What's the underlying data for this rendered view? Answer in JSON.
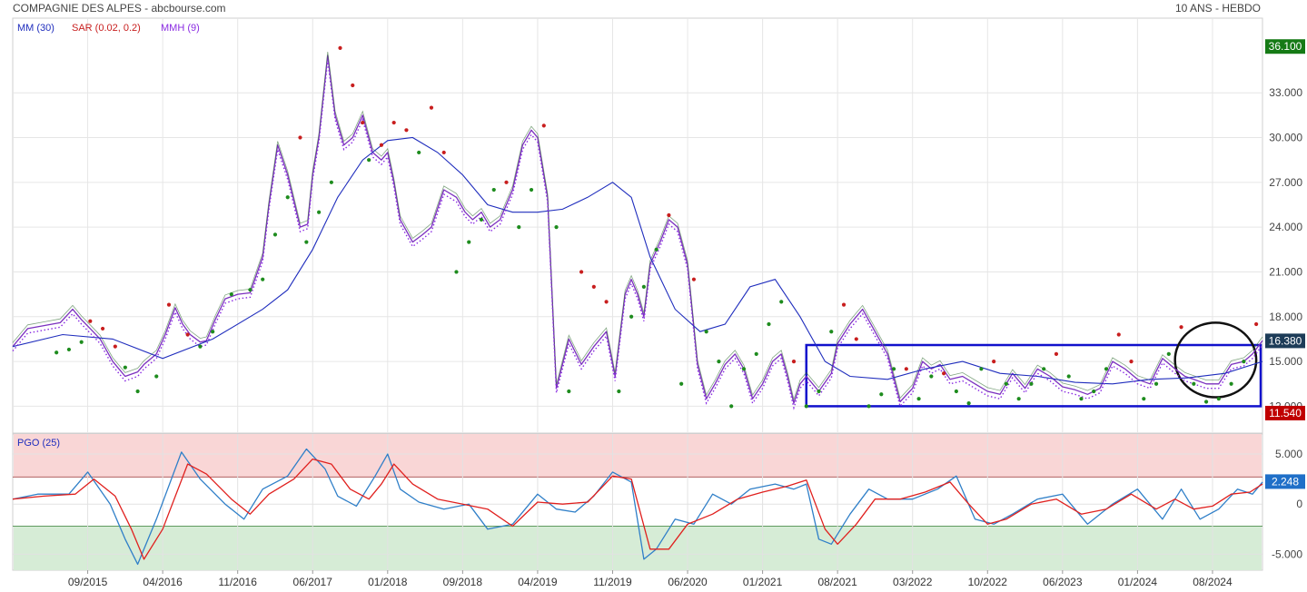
{
  "header": {
    "title": "COMPAGNIE DES ALPES - abcbourse.com",
    "period": "10 ANS - HEBDO"
  },
  "colors": {
    "price": "#7b2fbf",
    "ma": "#1f2dbd",
    "sar_down": "#c81e1e",
    "sar_up": "#1e8c1e",
    "mmh": "#8a2be2",
    "pgo": "#2f7fc8",
    "pgo_signal": "#e0201e",
    "upper_zone": "#f9d6d6",
    "lower_zone": "#d6ecd6",
    "annotation": "#1010cc",
    "circle": "#111111",
    "label_green": "#157a15",
    "label_dark": "#1d3c58",
    "label_red": "#c00000"
  },
  "chart_data": [
    {
      "type": "line",
      "legend": [
        {
          "label": "MM (30)",
          "color": "#1f2dbd"
        },
        {
          "label": "SAR (0.02, 0.2)",
          "color": "#c81e1e"
        },
        {
          "label": "MMH (9)",
          "color": "#8a2be2"
        }
      ],
      "legend_position": "top-left",
      "y_ticks": [
        "36.100",
        "33.000",
        "30.000",
        "27.000",
        "24.000",
        "21.000",
        "18.000",
        "15.000",
        "12.000",
        "11.540"
      ],
      "y_tick_values": [
        36.1,
        33,
        30,
        27,
        24,
        21,
        18,
        15,
        12,
        11.54
      ],
      "ylim": [
        10.2,
        38.0
      ],
      "xlim": [
        0,
        10.0
      ],
      "x_ticks": [
        "09/2015",
        "04/2016",
        "11/2016",
        "06/2017",
        "01/2018",
        "09/2018",
        "04/2019",
        "11/2019",
        "06/2020",
        "01/2021",
        "08/2021",
        "03/2022",
        "10/2022",
        "06/2023",
        "01/2024",
        "08/2024"
      ],
      "x_tick_positions": [
        0.6,
        1.2,
        1.8,
        2.4,
        3.0,
        3.6,
        4.2,
        4.8,
        5.4,
        6.0,
        6.6,
        7.2,
        7.8,
        8.4,
        9.0,
        9.6
      ],
      "grid": true,
      "value_labels": [
        {
          "text": "36.100",
          "value": 36.1,
          "color": "#157a15"
        },
        {
          "text": "16.380",
          "value": 16.38,
          "color": "#1d3c58"
        },
        {
          "text": "11.540",
          "value": 11.54,
          "color": "#c00000"
        }
      ],
      "price": {
        "x": [
          0,
          0.12,
          0.25,
          0.38,
          0.48,
          0.55,
          0.62,
          0.7,
          0.8,
          0.9,
          1.0,
          1.05,
          1.15,
          1.22,
          1.3,
          1.36,
          1.42,
          1.5,
          1.55,
          1.62,
          1.7,
          1.8,
          1.9,
          2.0,
          2.05,
          2.12,
          2.2,
          2.3,
          2.36,
          2.4,
          2.45,
          2.52,
          2.58,
          2.65,
          2.72,
          2.8,
          2.88,
          2.95,
          3.0,
          3.05,
          3.1,
          3.2,
          3.28,
          3.35,
          3.45,
          3.55,
          3.62,
          3.68,
          3.75,
          3.82,
          3.9,
          4.0,
          4.08,
          4.15,
          4.2,
          4.28,
          4.35,
          4.45,
          4.55,
          4.65,
          4.75,
          4.82,
          4.9,
          4.95,
          5.0,
          5.05,
          5.1,
          5.18,
          5.25,
          5.32,
          5.4,
          5.48,
          5.55,
          5.62,
          5.7,
          5.78,
          5.85,
          5.92,
          6.0,
          6.08,
          6.15,
          6.2,
          6.25,
          6.3,
          6.35,
          6.45,
          6.55,
          6.6,
          6.7,
          6.8,
          6.9,
          7.0,
          7.1,
          7.2,
          7.28,
          7.35,
          7.42,
          7.5,
          7.6,
          7.7,
          7.8,
          7.9,
          8.0,
          8.1,
          8.2,
          8.3,
          8.4,
          8.5,
          8.6,
          8.7,
          8.8,
          8.9,
          9.0,
          9.1,
          9.2,
          9.3,
          9.38,
          9.45,
          9.55,
          9.65,
          9.75,
          9.85,
          9.92,
          10.0
        ],
        "y": [
          16.0,
          17.2,
          17.4,
          17.6,
          18.5,
          17.8,
          17.2,
          16.5,
          15.0,
          14.0,
          14.3,
          14.8,
          15.5,
          16.8,
          18.6,
          17.5,
          16.8,
          16.3,
          16.4,
          17.8,
          19.2,
          19.5,
          19.6,
          22.0,
          25.5,
          29.5,
          27.5,
          24.0,
          24.2,
          27.5,
          30.0,
          35.5,
          31.5,
          29.5,
          30.0,
          31.5,
          29.0,
          28.5,
          29.0,
          27.0,
          24.5,
          23.0,
          23.5,
          24.0,
          26.5,
          26.0,
          25.0,
          24.5,
          25.0,
          24.0,
          24.5,
          26.5,
          29.5,
          30.5,
          30.0,
          26.0,
          13.2,
          16.5,
          14.8,
          16.0,
          17.0,
          14.0,
          19.5,
          20.5,
          19.5,
          18.0,
          21.5,
          23.0,
          24.5,
          24.0,
          21.5,
          14.8,
          12.5,
          13.5,
          14.8,
          15.5,
          14.5,
          12.5,
          13.5,
          15.0,
          15.5,
          14.0,
          12.2,
          13.5,
          14.0,
          13.0,
          14.2,
          16.2,
          17.5,
          18.5,
          17.0,
          15.5,
          12.3,
          13.2,
          15.0,
          14.5,
          14.8,
          13.8,
          14.0,
          13.5,
          13.0,
          12.8,
          14.2,
          13.2,
          14.5,
          14.0,
          13.3,
          13.1,
          12.8,
          13.2,
          15.0,
          14.5,
          13.8,
          13.5,
          15.2,
          14.5,
          14.0,
          13.8,
          13.5,
          13.5,
          14.8,
          15.0,
          15.5,
          16.4
        ]
      },
      "ma30": {
        "x": [
          0,
          0.4,
          0.8,
          1.2,
          1.6,
          2.0,
          2.2,
          2.4,
          2.6,
          2.8,
          3.0,
          3.2,
          3.4,
          3.6,
          3.8,
          4.0,
          4.2,
          4.4,
          4.6,
          4.8,
          4.95,
          5.1,
          5.3,
          5.5,
          5.7,
          5.9,
          6.1,
          6.3,
          6.5,
          6.7,
          7.0,
          7.3,
          7.6,
          7.9,
          8.2,
          8.5,
          8.8,
          9.1,
          9.4,
          9.7,
          10.0
        ],
        "y": [
          16.0,
          16.8,
          16.5,
          15.2,
          16.5,
          18.5,
          19.8,
          22.5,
          26.0,
          28.5,
          29.8,
          30.0,
          29.0,
          27.5,
          25.5,
          25.0,
          25.0,
          25.2,
          26.0,
          27.0,
          26.0,
          22.0,
          18.5,
          17.0,
          17.5,
          20.0,
          20.5,
          18.0,
          15.0,
          14.0,
          13.8,
          14.5,
          15.0,
          14.2,
          14.0,
          13.6,
          13.5,
          13.8,
          13.9,
          14.2,
          15.0
        ]
      },
      "sar": {
        "x": [
          0.35,
          0.45,
          0.55,
          0.62,
          0.72,
          0.82,
          0.9,
          1.0,
          1.15,
          1.25,
          1.4,
          1.5,
          1.6,
          1.75,
          1.9,
          2.0,
          2.1,
          2.2,
          2.3,
          2.35,
          2.45,
          2.55,
          2.62,
          2.72,
          2.8,
          2.85,
          2.95,
          3.05,
          3.15,
          3.25,
          3.35,
          3.45,
          3.55,
          3.65,
          3.75,
          3.85,
          3.95,
          4.05,
          4.15,
          4.25,
          4.35,
          4.45,
          4.55,
          4.65,
          4.75,
          4.85,
          4.95,
          5.05,
          5.15,
          5.25,
          5.35,
          5.45,
          5.55,
          5.65,
          5.75,
          5.85,
          5.95,
          6.05,
          6.15,
          6.25,
          6.35,
          6.45,
          6.55,
          6.65,
          6.75,
          6.85,
          6.95,
          7.05,
          7.15,
          7.25,
          7.35,
          7.45,
          7.55,
          7.65,
          7.75,
          7.85,
          7.95,
          8.05,
          8.15,
          8.25,
          8.35,
          8.45,
          8.55,
          8.65,
          8.75,
          8.85,
          8.95,
          9.05,
          9.15,
          9.25,
          9.35,
          9.45,
          9.55,
          9.65,
          9.75,
          9.85,
          9.95
        ],
        "y": [
          15.6,
          15.8,
          16.3,
          17.7,
          17.2,
          16.0,
          14.6,
          13.0,
          14.0,
          18.8,
          16.8,
          16.0,
          17.0,
          19.5,
          19.8,
          20.5,
          23.5,
          26.0,
          30.0,
          23.0,
          25.0,
          27.0,
          36.0,
          33.5,
          31.0,
          28.5,
          29.5,
          31.0,
          30.5,
          29.0,
          32.0,
          29.0,
          21.0,
          23.0,
          24.5,
          26.5,
          27.0,
          24.0,
          26.5,
          30.8,
          24.0,
          13.0,
          21.0,
          20.0,
          19.0,
          13.0,
          18.0,
          20.0,
          22.5,
          24.8,
          13.5,
          20.5,
          17.0,
          15.0,
          12.0,
          14.5,
          15.5,
          17.5,
          19.0,
          15.0,
          12.0,
          13.0,
          17.0,
          18.8,
          16.5,
          12.0,
          12.8,
          14.5,
          14.5,
          12.5,
          14.0,
          14.2,
          13.0,
          12.2,
          14.5,
          15.0,
          13.5,
          12.5,
          13.5,
          14.5,
          15.5,
          14.0,
          12.5,
          13.0,
          14.5,
          16.8,
          15.0,
          12.5,
          13.5,
          15.5,
          17.3,
          13.5,
          12.3,
          12.5,
          13.5,
          15.0,
          17.5
        ],
        "side": [
          "up",
          "up",
          "up",
          "down",
          "down",
          "down",
          "up",
          "up",
          "up",
          "down",
          "down",
          "up",
          "up",
          "up",
          "up",
          "up",
          "up",
          "up",
          "down",
          "up",
          "up",
          "up",
          "down",
          "down",
          "down",
          "up",
          "down",
          "down",
          "down",
          "up",
          "down",
          "down",
          "up",
          "up",
          "up",
          "up",
          "down",
          "up",
          "up",
          "down",
          "up",
          "up",
          "down",
          "down",
          "down",
          "up",
          "up",
          "up",
          "up",
          "down",
          "up",
          "down",
          "up",
          "up",
          "up",
          "up",
          "up",
          "up",
          "up",
          "down",
          "up",
          "up",
          "up",
          "down",
          "down",
          "up",
          "up",
          "up",
          "down",
          "up",
          "up",
          "down",
          "up",
          "up",
          "up",
          "down",
          "up",
          "up",
          "up",
          "up",
          "down",
          "up",
          "up",
          "up",
          "up",
          "down",
          "down",
          "up",
          "up",
          "up",
          "down",
          "up",
          "up",
          "up",
          "up",
          "up",
          "down"
        ]
      },
      "annotation_rect": {
        "x0": 6.35,
        "x1": 10.0,
        "y0": 12.0,
        "y1": 16.1
      },
      "annotation_circle": {
        "x0": 9.3,
        "x1": 9.95,
        "y0": 12.6,
        "y1": 17.6
      }
    },
    {
      "type": "line",
      "title": "PGO (25)",
      "y_ticks": [
        "5.000",
        "2.248",
        "0",
        "-5.000"
      ],
      "y_tick_values": [
        5,
        2.248,
        0,
        -5
      ],
      "ylim": [
        -6.6,
        7.0
      ],
      "upper_band": [
        2.7,
        7.0
      ],
      "lower_band": [
        -6.6,
        -2.2
      ],
      "value_label": {
        "text": "2.248",
        "value": 2.248
      },
      "series": [
        {
          "name": "PGO",
          "x": [
            0,
            0.2,
            0.45,
            0.6,
            0.78,
            0.9,
            1.0,
            1.15,
            1.35,
            1.5,
            1.7,
            1.85,
            2.0,
            2.2,
            2.35,
            2.5,
            2.6,
            2.75,
            2.9,
            3.0,
            3.1,
            3.25,
            3.45,
            3.65,
            3.8,
            4.0,
            4.2,
            4.35,
            4.5,
            4.65,
            4.8,
            4.95,
            5.05,
            5.15,
            5.3,
            5.45,
            5.6,
            5.75,
            5.9,
            6.1,
            6.25,
            6.35,
            6.45,
            6.55,
            6.7,
            6.85,
            7.0,
            7.2,
            7.4,
            7.55,
            7.7,
            7.85,
            8.0,
            8.2,
            8.4,
            8.6,
            8.8,
            9.0,
            9.2,
            9.35,
            9.5,
            9.65,
            9.8,
            9.92,
            10.0
          ],
          "y": [
            0.5,
            1.0,
            1.0,
            3.2,
            0.0,
            -3.5,
            -6.0,
            -1.5,
            5.2,
            2.5,
            0.0,
            -1.5,
            1.5,
            2.8,
            5.5,
            3.5,
            0.8,
            -0.2,
            2.8,
            5.0,
            1.5,
            0.2,
            -0.5,
            0.0,
            -2.5,
            -2.0,
            1.0,
            -0.5,
            -0.8,
            0.8,
            3.2,
            2.2,
            -5.5,
            -4.5,
            -1.5,
            -2.0,
            1.0,
            0.0,
            1.5,
            2.0,
            1.5,
            2.0,
            -3.5,
            -4.0,
            -1.0,
            1.5,
            0.5,
            0.5,
            1.5,
            2.8,
            -1.5,
            -2.0,
            -1.0,
            0.5,
            1.0,
            -2.0,
            0.0,
            1.5,
            -1.5,
            1.5,
            -1.5,
            -0.5,
            1.5,
            1.0,
            2.2
          ]
        },
        {
          "name": "Signal",
          "x": [
            0,
            0.25,
            0.5,
            0.65,
            0.82,
            0.95,
            1.05,
            1.2,
            1.4,
            1.55,
            1.75,
            1.9,
            2.05,
            2.25,
            2.4,
            2.55,
            2.7,
            2.85,
            2.95,
            3.05,
            3.2,
            3.4,
            3.6,
            3.8,
            4.0,
            4.2,
            4.4,
            4.6,
            4.8,
            4.95,
            5.1,
            5.25,
            5.4,
            5.6,
            5.8,
            6.0,
            6.2,
            6.35,
            6.5,
            6.6,
            6.75,
            6.9,
            7.1,
            7.3,
            7.5,
            7.65,
            7.8,
            7.95,
            8.15,
            8.35,
            8.55,
            8.75,
            8.95,
            9.15,
            9.3,
            9.45,
            9.6,
            9.75,
            9.9,
            10.0
          ],
          "y": [
            0.5,
            0.8,
            1.0,
            2.5,
            0.8,
            -2.5,
            -5.5,
            -2.5,
            4.0,
            3.0,
            0.5,
            -1.0,
            1.0,
            2.5,
            4.5,
            4.0,
            1.5,
            0.5,
            2.0,
            4.0,
            2.0,
            0.5,
            0.0,
            -0.5,
            -2.2,
            0.2,
            0.0,
            0.2,
            2.8,
            2.5,
            -4.5,
            -4.5,
            -2.0,
            -1.0,
            0.5,
            1.2,
            1.8,
            2.4,
            -2.5,
            -4.0,
            -2.0,
            0.5,
            0.5,
            1.2,
            2.2,
            0.0,
            -2.0,
            -1.5,
            0.0,
            0.5,
            -1.0,
            -0.5,
            1.0,
            -0.5,
            0.5,
            -0.5,
            -0.2,
            1.0,
            1.2,
            2.0
          ]
        }
      ]
    }
  ]
}
